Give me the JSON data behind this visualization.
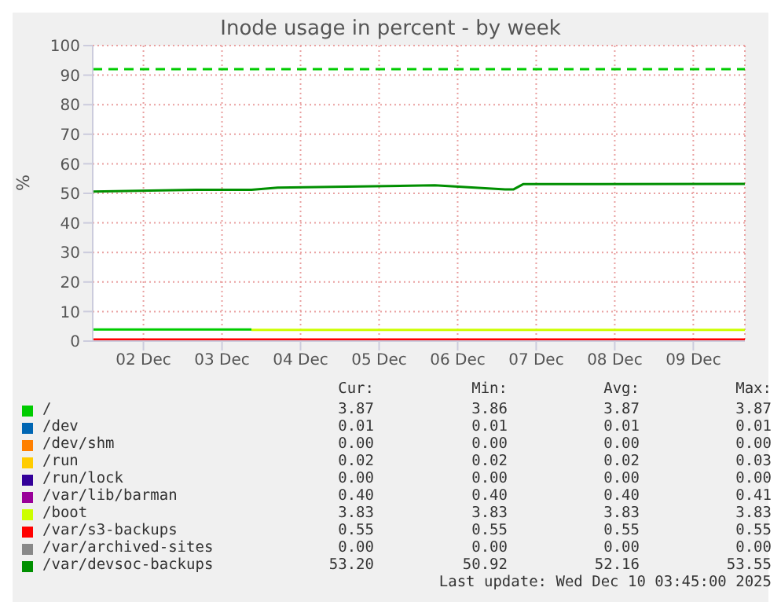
{
  "chart_data": {
    "type": "line",
    "title": "Inode usage in percent - by week",
    "ylabel": "%",
    "x": [
      "2025-12-01T20:30",
      "2025-12-03T04:00",
      "2025-12-03T21:00",
      "2025-12-04T05:00",
      "2025-12-06T05:00",
      "2025-12-07T02:30",
      "2025-12-07T05:00",
      "2025-12-07T08:00",
      "2025-12-10T03:45"
    ],
    "xlim": [
      "2025-12-01T20:30",
      "2025-12-10T03:45"
    ],
    "xticks": [
      {
        "value": "2025-12-02T12:00",
        "label": "02 Dec"
      },
      {
        "value": "2025-12-03T12:00",
        "label": "03 Dec"
      },
      {
        "value": "2025-12-04T12:00",
        "label": "04 Dec"
      },
      {
        "value": "2025-12-05T12:00",
        "label": "05 Dec"
      },
      {
        "value": "2025-12-06T12:00",
        "label": "06 Dec"
      },
      {
        "value": "2025-12-07T12:00",
        "label": "07 Dec"
      },
      {
        "value": "2025-12-08T12:00",
        "label": "08 Dec"
      },
      {
        "value": "2025-12-09T12:00",
        "label": "09 Dec"
      }
    ],
    "ylim": [
      0,
      100
    ],
    "yticks": [
      0,
      10,
      20,
      30,
      40,
      50,
      60,
      70,
      80,
      90,
      100
    ],
    "grid": true,
    "legend": "bottom",
    "series": [
      {
        "name": "/",
        "color": "#00cc00",
        "values": [
          3.9,
          3.9,
          3.9,
          null,
          null,
          null,
          null,
          null,
          null
        ]
      },
      {
        "name": "/dev",
        "color": "#0066b3",
        "values": [
          null,
          null,
          null,
          null,
          null,
          null,
          null,
          null,
          null
        ]
      },
      {
        "name": "/dev/shm",
        "color": "#ff8000",
        "values": [
          null,
          null,
          null,
          null,
          null,
          null,
          null,
          null,
          null
        ]
      },
      {
        "name": "/run",
        "color": "#ffcc00",
        "values": [
          null,
          null,
          null,
          null,
          null,
          null,
          null,
          null,
          null
        ]
      },
      {
        "name": "/run/lock",
        "color": "#330099",
        "values": [
          null,
          null,
          null,
          null,
          null,
          null,
          null,
          null,
          null
        ]
      },
      {
        "name": "/var/lib/barman",
        "color": "#990099",
        "values": [
          null,
          null,
          null,
          null,
          null,
          null,
          null,
          null,
          null
        ]
      },
      {
        "name": "/boot",
        "color": "#ccff00",
        "values": [
          null,
          null,
          3.8,
          3.8,
          3.8,
          3.8,
          3.8,
          3.8,
          3.8
        ]
      },
      {
        "name": "/var/s3-backups",
        "color": "#ff0000",
        "values": [
          0.5,
          0.5,
          0.5,
          0.5,
          0.5,
          0.5,
          0.5,
          0.5,
          0.5
        ]
      },
      {
        "name": "/var/archived-sites",
        "color": "#888888",
        "values": [
          null,
          null,
          null,
          null,
          null,
          null,
          null,
          null,
          null
        ]
      },
      {
        "name": "/var/devsoc-backups",
        "color": "#008f00",
        "values": [
          50.6,
          51.2,
          51.2,
          51.9,
          52.7,
          51.3,
          51.3,
          53.1,
          53.2
        ]
      }
    ],
    "ref_lines": [
      {
        "axis": "y",
        "value": 92,
        "color": "#00cc00",
        "line_style": "dashed"
      }
    ],
    "annotations": [
      "Cur:",
      "Min:",
      "Avg:",
      "Max:",
      "3.87",
      "3.86",
      "3.87",
      "3.87",
      "0.01",
      "0.01",
      "0.01",
      "0.01",
      "0.00",
      "0.00",
      "0.00",
      "0.00",
      "0.02",
      "0.02",
      "0.02",
      "0.03",
      "0.00",
      "0.00",
      "0.00",
      "0.00",
      "0.40",
      "0.40",
      "0.40",
      "0.41",
      "3.83",
      "3.83",
      "3.83",
      "3.83",
      "0.55",
      "0.55",
      "0.55",
      "0.55",
      "0.00",
      "0.00",
      "0.00",
      "0.00",
      "53.20",
      "50.92",
      "52.16",
      "53.55",
      "Last update: Wed Dec 10 03:45:00 2025"
    ]
  }
}
